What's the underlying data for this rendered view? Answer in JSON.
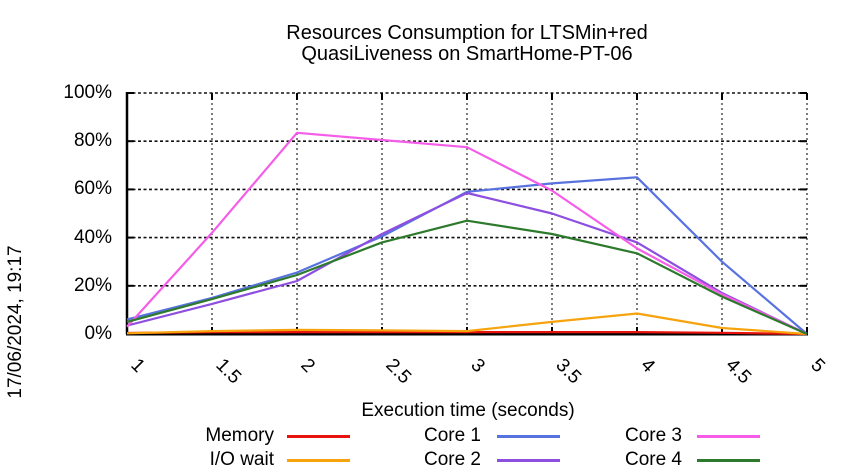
{
  "timestamp": "17/06/2024, 19:17",
  "chart_data": {
    "type": "line",
    "title_line1": "Resources Consumption for LTSMin+red",
    "title_line2": "QuasiLiveness on SmartHome-PT-06",
    "xlabel": "Execution time (seconds)",
    "ylabel": "",
    "xlim": [
      1,
      5
    ],
    "ylim": [
      0,
      100
    ],
    "grid": true,
    "legend_position": "bottom",
    "xtick_labels": [
      "1",
      "1.5",
      "2",
      "2.5",
      "3",
      "3.5",
      "4",
      "4.5",
      "5"
    ],
    "ytick_labels": [
      "0%",
      "20%",
      "40%",
      "60%",
      "80%",
      "100%"
    ],
    "x": [
      1,
      1.5,
      2,
      2.5,
      3,
      3.5,
      4,
      4.5,
      5
    ],
    "series": [
      {
        "name": "Memory",
        "color": "#e8130c",
        "values": [
          0.4,
          0.8,
          0.8,
          0.8,
          0.8,
          0.8,
          0.8,
          0.5,
          0
        ]
      },
      {
        "name": "I/O wait",
        "color": "#f7a30d",
        "values": [
          0.3,
          1.2,
          1.7,
          1.5,
          1.2,
          5,
          8.5,
          2.5,
          0
        ]
      },
      {
        "name": "Core 1",
        "color": "#5873e0",
        "values": [
          6,
          15,
          25.5,
          40.5,
          59,
          62.5,
          65,
          30,
          0
        ]
      },
      {
        "name": "Core 2",
        "color": "#8d4fe0",
        "values": [
          3.5,
          12.5,
          22,
          41.5,
          58.5,
          50,
          38,
          17,
          0
        ]
      },
      {
        "name": "Core 3",
        "color": "#f55ce8",
        "values": [
          3,
          42,
          83.5,
          80.5,
          77.5,
          59.5,
          35.5,
          16.5,
          0
        ]
      },
      {
        "name": "Core 4",
        "color": "#2d7a2d",
        "values": [
          5,
          14.5,
          24.5,
          38,
          47,
          41.5,
          33.5,
          15.5,
          0
        ]
      }
    ]
  }
}
